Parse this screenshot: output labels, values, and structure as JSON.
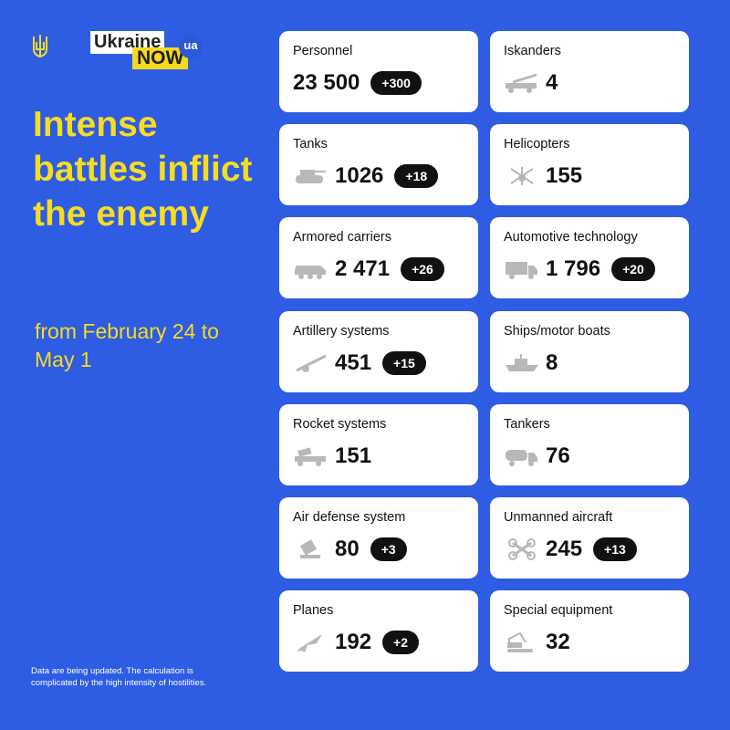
{
  "brand": {
    "line1": "Ukraine",
    "line2": "NOW",
    "badge": "ua"
  },
  "headline": "Intense battles inflict the enemy",
  "period": "from February 24 to May 1",
  "note": "Data are being updated. The calculation is complicated by the high intensity of hostilities.",
  "colors": {
    "background": "#2e5ce2",
    "accent": "#f5dd22",
    "card": "#ffffff",
    "badge": "#111111"
  },
  "cards": [
    {
      "title": "Personnel",
      "value": "23 500",
      "delta": "+300",
      "icon": "none"
    },
    {
      "title": "Iskanders",
      "value": "4",
      "delta": "",
      "icon": "missile-launcher-icon"
    },
    {
      "title": "Tanks",
      "value": "1026",
      "delta": "+18",
      "icon": "tank-icon"
    },
    {
      "title": "Helicopters",
      "value": "155",
      "delta": "",
      "icon": "helicopter-icon"
    },
    {
      "title": "Armored carriers",
      "value": "2 471",
      "delta": "+26",
      "icon": "apc-icon"
    },
    {
      "title": "Automotive technology",
      "value": "1 796",
      "delta": "+20",
      "icon": "truck-icon"
    },
    {
      "title": "Artillery systems",
      "value": "451",
      "delta": "+15",
      "icon": "artillery-icon"
    },
    {
      "title": "Ships/motor boats",
      "value": "8",
      "delta": "",
      "icon": "ship-icon"
    },
    {
      "title": "Rocket systems",
      "value": "151",
      "delta": "",
      "icon": "rocket-launcher-icon"
    },
    {
      "title": "Tankers",
      "value": "76",
      "delta": "",
      "icon": "fuel-truck-icon"
    },
    {
      "title": "Air defense system",
      "value": "80",
      "delta": "+3",
      "icon": "air-defense-icon"
    },
    {
      "title": "Unmanned aircraft",
      "value": "245",
      "delta": "+13",
      "icon": "drone-icon"
    },
    {
      "title": "Planes",
      "value": "192",
      "delta": "+2",
      "icon": "plane-icon"
    },
    {
      "title": "Special equipment",
      "value": "32",
      "delta": "",
      "icon": "excavator-icon"
    }
  ]
}
